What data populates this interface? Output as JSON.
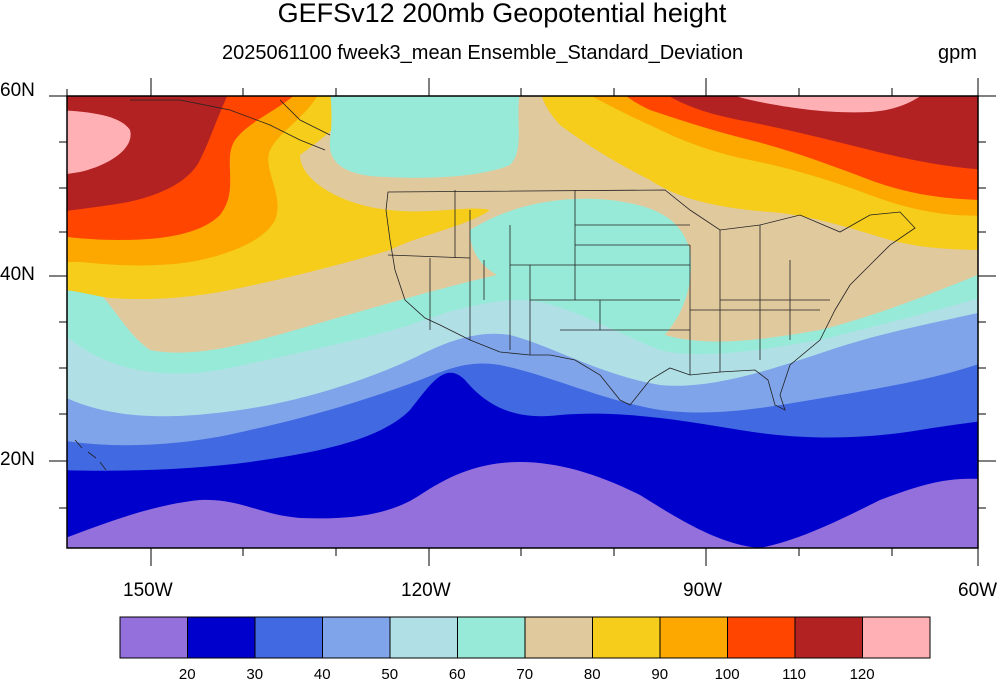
{
  "title": "GEFSv12 200mb Geopotential height",
  "subtitle": "2025061100 fweek3_mean Ensemble_Standard_Deviation",
  "units": "gpm",
  "lat_labels": [
    "60N",
    "40N",
    "20N"
  ],
  "lon_labels": [
    "150W",
    "120W",
    "90W",
    "60W"
  ],
  "colorbar": {
    "levels": [
      "20",
      "30",
      "40",
      "50",
      "60",
      "70",
      "80",
      "90",
      "100",
      "110",
      "120"
    ],
    "colors": [
      "#9370db",
      "#0000cd",
      "#4169e1",
      "#7fa4ea",
      "#b0e0e6",
      "#98ead8",
      "#e1c99e",
      "#f5cd1a",
      "#fca800",
      "#ff4500",
      "#b22222",
      "#ffb0b5"
    ]
  }
}
